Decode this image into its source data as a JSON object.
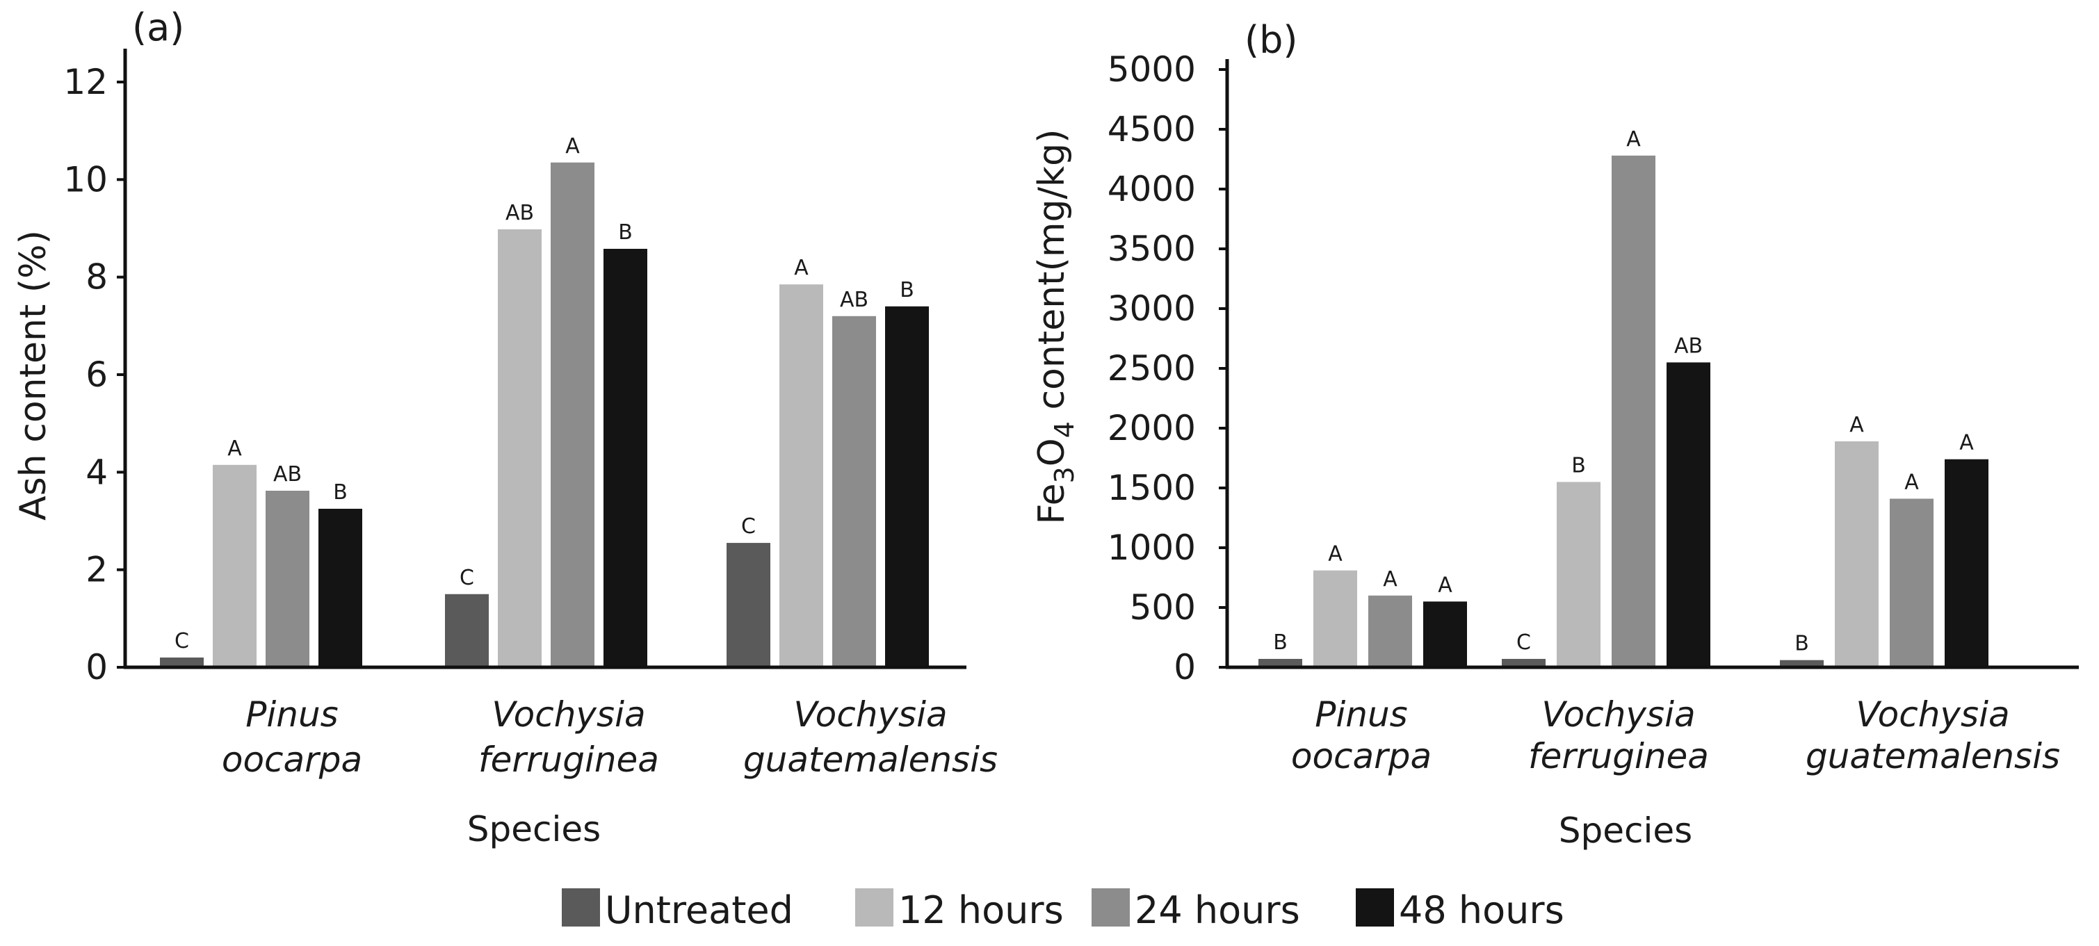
{
  "chart_data": [
    {
      "type": "bar",
      "panel_label": "(a)",
      "title": "",
      "xlabel": "Species",
      "ylabel": "Ash content  (%)",
      "ylim": [
        0,
        12
      ],
      "yticks": [
        "0",
        "2",
        "4",
        "6",
        "8",
        "10",
        "12"
      ],
      "categories": [
        [
          "Pinus",
          "oocarpa"
        ],
        [
          "Vochysia",
          "ferruginea"
        ],
        [
          "Vochysia",
          "guatemalensis"
        ]
      ],
      "series": [
        {
          "name": "Untreated",
          "values": [
            0.2,
            1.5,
            2.55
          ],
          "labels": [
            "C",
            "C",
            "C"
          ]
        },
        {
          "name": "12 hours",
          "values": [
            4.15,
            8.98,
            7.85
          ],
          "labels": [
            "A",
            "AB",
            "A"
          ]
        },
        {
          "name": "24 hours",
          "values": [
            3.62,
            10.35,
            7.2
          ],
          "labels": [
            "AB",
            "A",
            "AB"
          ]
        },
        {
          "name": "48 hours",
          "values": [
            3.25,
            8.58,
            7.4
          ],
          "labels": [
            "B",
            "B",
            "B"
          ]
        }
      ]
    },
    {
      "type": "bar",
      "panel_label": "(b)",
      "title": "",
      "xlabel": "Species",
      "ylabel_parts": [
        "Fe",
        "3",
        "O",
        "4",
        " content",
        "(",
        "mg/kg",
        ")"
      ],
      "ylim": [
        0,
        5000
      ],
      "yticks": [
        "0",
        "500",
        "1000",
        "1500",
        "2000",
        "2500",
        "3000",
        "3500",
        "4000",
        "4500",
        "5000"
      ],
      "categories": [
        [
          "Pinus",
          "oocarpa"
        ],
        [
          "Vochysia",
          "ferruginea"
        ],
        [
          "Vochysia",
          "guatemalensis"
        ]
      ],
      "series": [
        {
          "name": "Untreated",
          "values": [
            70,
            70,
            60
          ],
          "labels": [
            "B",
            "C",
            "B"
          ]
        },
        {
          "name": "12 hours",
          "values": [
            810,
            1550,
            1890
          ],
          "labels": [
            "A",
            "B",
            "A"
          ]
        },
        {
          "name": "24 hours",
          "values": [
            600,
            4280,
            1410
          ],
          "labels": [
            "A",
            "A",
            "A"
          ]
        },
        {
          "name": "48 hours",
          "values": [
            550,
            2550,
            1740
          ],
          "labels": [
            "A",
            "AB",
            "A"
          ]
        }
      ]
    }
  ],
  "legend": {
    "placement": "bottom-center",
    "items": [
      {
        "name": "Untreated",
        "color": "#5a5a5a"
      },
      {
        "name": "12 hours",
        "color": "#b9b9b9"
      },
      {
        "name": "24 hours",
        "color": "#8c8c8c"
      },
      {
        "name": "48 hours",
        "color": "#141414"
      }
    ]
  }
}
